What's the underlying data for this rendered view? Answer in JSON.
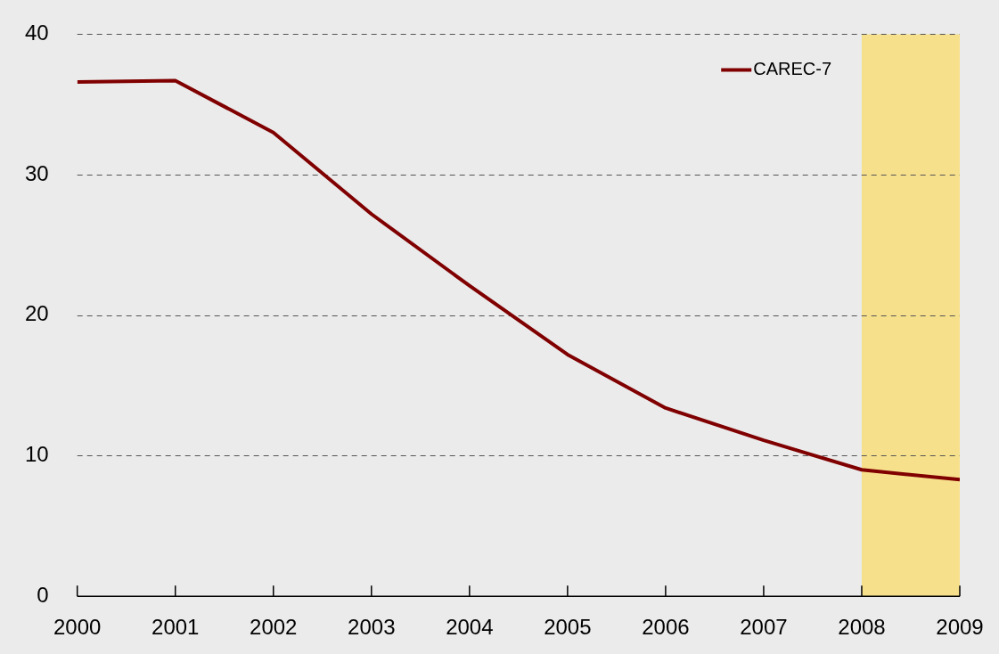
{
  "chart_data": {
    "type": "line",
    "x": [
      2000,
      2001,
      2002,
      2003,
      2004,
      2005,
      2006,
      2007,
      2008,
      2009
    ],
    "series": [
      {
        "name": "CAREC-7",
        "color": "#800000",
        "values": [
          36.6,
          36.7,
          33.0,
          27.2,
          22.1,
          17.2,
          13.4,
          11.1,
          9.0,
          8.3
        ]
      }
    ],
    "xlim": [
      2000,
      2009
    ],
    "xticks": [
      2000,
      2001,
      2002,
      2003,
      2004,
      2005,
      2006,
      2007,
      2008,
      2009
    ],
    "ylim": [
      0,
      40
    ],
    "yticks": [
      0,
      10,
      20,
      30,
      40
    ],
    "grid": "y",
    "legend": "top right",
    "line_style": "solid",
    "marker": "none",
    "bands": [
      {
        "axis": "x",
        "from": 2008,
        "to": 2009,
        "color": "#f7e08c"
      }
    ]
  }
}
